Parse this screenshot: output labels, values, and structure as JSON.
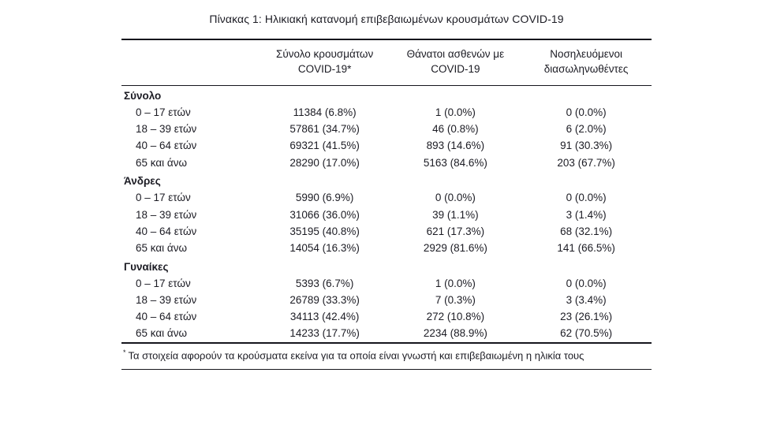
{
  "page": {
    "title": "Πίνακας 1: Ηλικιακή κατανομή επιβεβαιωμένων κρουσμάτων COVID-19",
    "footnote_marker": "*",
    "footnote": "Τα στοιχεία αφορούν τα κρούσματα εκείνα για τα οποία είναι γνωστή και επιβεβαιωμένη η ηλικία τους"
  },
  "table": {
    "columns": [
      {
        "line1": "Σύνολο κρουσμάτων",
        "line2": "COVID-19*"
      },
      {
        "line1": "Θάνατοι ασθενών με",
        "line2": "COVID-19"
      },
      {
        "line1": "Νοσηλευόμενοι",
        "line2": "διασωληνωθέντες"
      }
    ],
    "sections": [
      {
        "label": "Σύνολο",
        "rows": [
          {
            "label": "0 – 17 ετών",
            "values": [
              "11384 (6.8%)",
              "1 (0.0%)",
              "0 (0.0%)"
            ]
          },
          {
            "label": "18 – 39 ετών",
            "values": [
              "57861 (34.7%)",
              "46 (0.8%)",
              "6 (2.0%)"
            ]
          },
          {
            "label": "40 – 64 ετών",
            "values": [
              "69321 (41.5%)",
              "893 (14.6%)",
              "91 (30.3%)"
            ]
          },
          {
            "label": "65 και άνω",
            "values": [
              "28290 (17.0%)",
              "5163 (84.6%)",
              "203 (67.7%)"
            ]
          }
        ]
      },
      {
        "label": "Άνδρες",
        "rows": [
          {
            "label": "0 – 17 ετών",
            "values": [
              "5990 (6.9%)",
              "0 (0.0%)",
              "0 (0.0%)"
            ]
          },
          {
            "label": "18 – 39 ετών",
            "values": [
              "31066 (36.0%)",
              "39 (1.1%)",
              "3 (1.4%)"
            ]
          },
          {
            "label": "40 – 64 ετών",
            "values": [
              "35195 (40.8%)",
              "621 (17.3%)",
              "68 (32.1%)"
            ]
          },
          {
            "label": "65 και άνω",
            "values": [
              "14054 (16.3%)",
              "2929 (81.6%)",
              "141 (66.5%)"
            ]
          }
        ]
      },
      {
        "label": "Γυναίκες",
        "rows": [
          {
            "label": "0 – 17 ετών",
            "values": [
              "5393 (6.7%)",
              "1 (0.0%)",
              "0 (0.0%)"
            ]
          },
          {
            "label": "18 – 39 ετών",
            "values": [
              "26789 (33.3%)",
              "7 (0.3%)",
              "3 (3.4%)"
            ]
          },
          {
            "label": "40 – 64 ετών",
            "values": [
              "34113 (42.4%)",
              "272 (10.8%)",
              "23 (26.1%)"
            ]
          },
          {
            "label": "65 και άνω",
            "values": [
              "14233 (17.7%)",
              "2234 (88.9%)",
              "62 (70.5%)"
            ]
          }
        ]
      }
    ]
  }
}
